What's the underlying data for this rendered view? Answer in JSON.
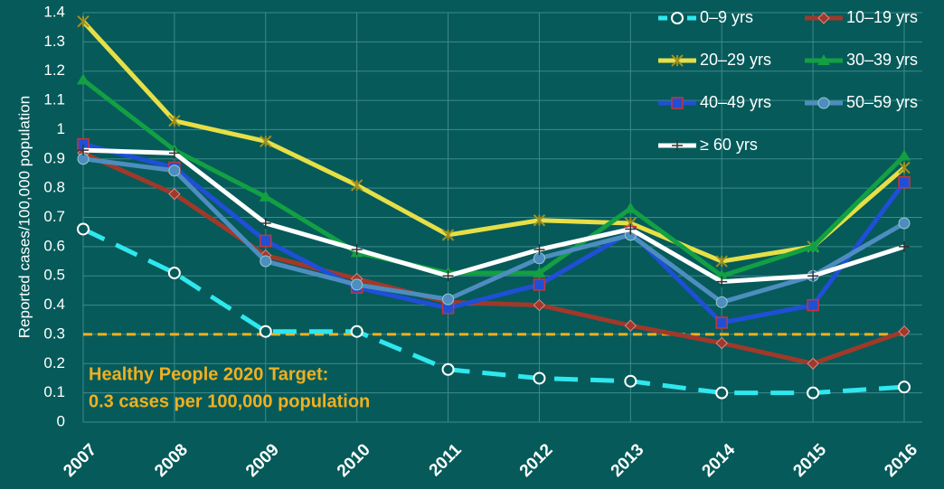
{
  "chart_data": {
    "type": "line",
    "ylabel": "Reported cases/100,000 population",
    "categories": [
      "2007",
      "2008",
      "2009",
      "2010",
      "2011",
      "2012",
      "2013",
      "2014",
      "2015",
      "2016"
    ],
    "ylim": [
      0,
      1.4
    ],
    "yticks": [
      0,
      0.1,
      0.2,
      0.3,
      0.4,
      0.5,
      0.6,
      0.7,
      0.8,
      0.9,
      1,
      1.1,
      1.2,
      1.3,
      1.4
    ],
    "grid": true,
    "legend": "upper right",
    "target_line": {
      "value": 0.3,
      "color": "#f0b020"
    },
    "annotations": [
      "Healthy People 2020 Target:",
      "0.3 cases per 100,000 population"
    ],
    "series": [
      {
        "name": "0–9 yrs",
        "color": "#2ee8ee",
        "marker": "circle-open",
        "dashed": true,
        "values": [
          0.66,
          0.51,
          0.31,
          0.31,
          0.18,
          0.15,
          0.14,
          0.1,
          0.1,
          0.12
        ]
      },
      {
        "name": "10–19 yrs",
        "color": "#a0392a",
        "marker": "diamond",
        "values": [
          0.92,
          0.78,
          0.57,
          0.49,
          0.41,
          0.4,
          0.33,
          0.27,
          0.2,
          0.31
        ]
      },
      {
        "name": "20–29 yrs",
        "color": "#e6df46",
        "marker": "star",
        "values": [
          1.37,
          1.03,
          0.96,
          0.81,
          0.64,
          0.69,
          0.68,
          0.55,
          0.6,
          0.87
        ]
      },
      {
        "name": "30–39 yrs",
        "color": "#12a043",
        "marker": "triangle",
        "values": [
          1.17,
          0.93,
          0.77,
          0.58,
          0.51,
          0.51,
          0.73,
          0.5,
          0.6,
          0.91
        ]
      },
      {
        "name": "40–49 yrs",
        "color": "#1f4fd6",
        "marker": "square",
        "values": [
          0.95,
          0.87,
          0.62,
          0.46,
          0.39,
          0.47,
          0.65,
          0.34,
          0.4,
          0.82
        ]
      },
      {
        "name": "50–59 yrs",
        "color": "#4d8dbf",
        "marker": "circle",
        "values": [
          0.9,
          0.86,
          0.55,
          0.47,
          0.42,
          0.56,
          0.64,
          0.41,
          0.5,
          0.68
        ]
      },
      {
        "name": "≥ 60 yrs",
        "color": "#ffffff",
        "marker": "plus",
        "values": [
          0.93,
          0.92,
          0.68,
          0.59,
          0.5,
          0.59,
          0.66,
          0.48,
          0.5,
          0.6
        ]
      }
    ]
  }
}
